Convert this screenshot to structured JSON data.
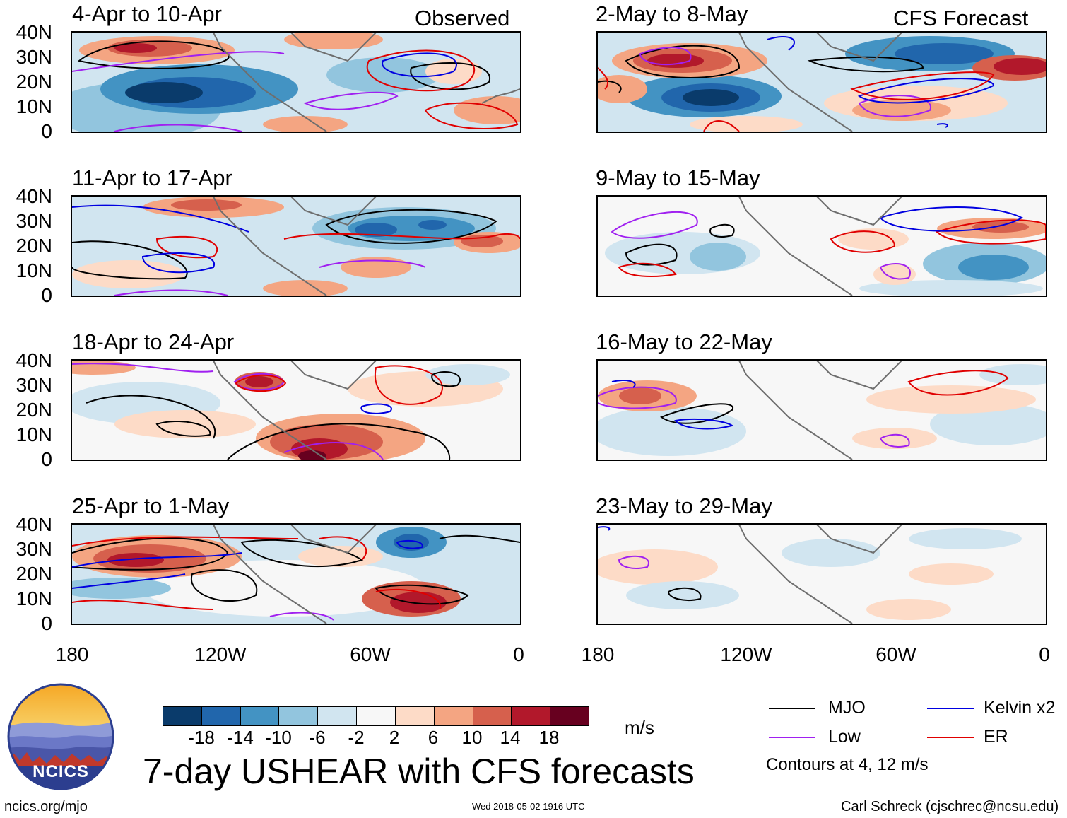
{
  "observed_label": "Observed",
  "forecast_label": "CFS Forecast",
  "lat_labels": [
    "40N",
    "30N",
    "20N",
    "10N",
    "0"
  ],
  "lon_labels": [
    "180",
    "120W",
    "60W",
    "0"
  ],
  "panels_observed": [
    {
      "title": "4-Apr to 10-Apr"
    },
    {
      "title": "11-Apr to 17-Apr"
    },
    {
      "title": "18-Apr to 24-Apr"
    },
    {
      "title": "25-Apr to 1-May"
    }
  ],
  "panels_forecast": [
    {
      "title": "2-May to 8-May"
    },
    {
      "title": "9-May to 15-May"
    },
    {
      "title": "16-May to 22-May"
    },
    {
      "title": "23-May to 29-May"
    }
  ],
  "colorbar": {
    "unit": "m/s",
    "ticks": [
      "-18",
      "-14",
      "-10",
      "-6",
      "-2",
      "2",
      "6",
      "10",
      "14",
      "18"
    ],
    "colors": [
      "#0a3b6b",
      "#2166ac",
      "#4393c3",
      "#92c5de",
      "#d1e5f0",
      "#f7f7f7",
      "#fddbc7",
      "#f4a582",
      "#d6604d",
      "#b2182b",
      "#67001f"
    ]
  },
  "legend": {
    "items": [
      {
        "label": "MJO",
        "color": "#000000"
      },
      {
        "label": "Kelvin x2",
        "color": "#0000e0"
      },
      {
        "label": "Low",
        "color": "#a020f0"
      },
      {
        "label": "ER",
        "color": "#e00000"
      }
    ],
    "note": "Contours at 4, 12 m/s"
  },
  "main_title": "7-day USHEAR with CFS forecasts",
  "logo_text": "NCICS",
  "url": "ncics.org/mjo",
  "timestamp": "Wed 2018-05-02 1916 UTC",
  "credit": "Carl Schreck (cjschrec@ncsu.edu)"
}
